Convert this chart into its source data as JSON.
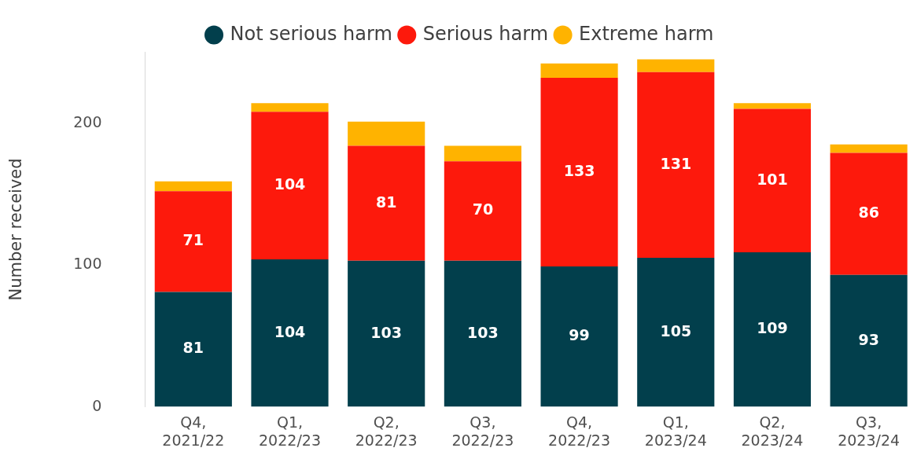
{
  "chart_data": {
    "type": "bar",
    "stacked": true,
    "ylabel": "Number received",
    "categories": [
      "Q4, 2021/22",
      "Q1, 2022/23",
      "Q2, 2022/23",
      "Q3, 2022/23",
      "Q4, 2022/23",
      "Q1, 2023/24",
      "Q2, 2023/24",
      "Q3, 2023/24"
    ],
    "series": [
      {
        "name": "Not serious harm",
        "color": "#023f4c",
        "values": [
          81,
          104,
          103,
          103,
          99,
          105,
          109,
          93
        ],
        "value_labels": [
          "81",
          "104",
          "103",
          "103",
          "99",
          "105",
          "109",
          "93"
        ]
      },
      {
        "name": "Serious harm",
        "color": "#fd190c",
        "values": [
          71,
          104,
          81,
          70,
          133,
          131,
          101,
          86
        ],
        "value_labels": [
          "71",
          "104",
          "81",
          "70",
          "133",
          "131",
          "101",
          "86"
        ]
      },
      {
        "name": "Extreme harm",
        "color": "#ffb300",
        "values": [
          7,
          6,
          17,
          11,
          10,
          9,
          4,
          6
        ]
      }
    ],
    "ylim": [
      0,
      250
    ],
    "yticks": [
      0,
      100,
      200
    ],
    "grid": false,
    "legend": "top"
  }
}
